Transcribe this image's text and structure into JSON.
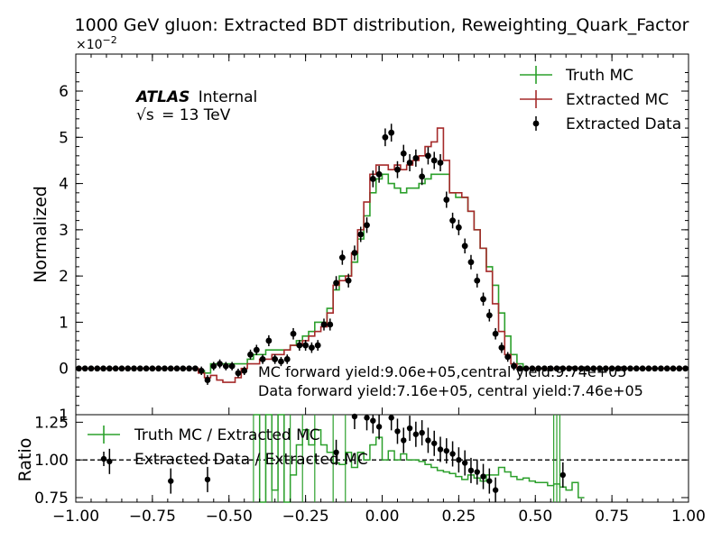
{
  "chart_data": [
    {
      "type": "line",
      "title": "1000 GeV gluon: Extracted BDT distribution, Reweighting_Quark_Factor",
      "xlabel": "",
      "ylabel": "Normalized",
      "y_multiplier_label": "×10",
      "y_multiplier_exp": "−2",
      "xlim": [
        -1.0,
        1.0
      ],
      "ylim": [
        -1.0,
        6.8
      ],
      "y_ticks": [
        0,
        1,
        2,
        3,
        4,
        5,
        6
      ],
      "y_tick_labels": [
        "0",
        "1",
        "2",
        "3",
        "4",
        "5",
        "6"
      ],
      "y_tick_label_minus1": "1",
      "legend_position": "top-right",
      "atlas_label": "ATLAS",
      "atlas_sublabel": "Internal",
      "energy_sqrt": "√s",
      "energy_value": "= 13 TeV",
      "yield_text_mc": "MC forward yield:9.06e+05,central yield:9.74e+05",
      "yield_text_data": "Data forward yield:7.16e+05, central yield:7.46e+05",
      "bin_edges_start": -1.0,
      "bin_width": 0.02,
      "series": [
        {
          "name": "Truth MC",
          "kind": "step",
          "color": "#2ca02c",
          "values": [
            0,
            0,
            0,
            0,
            0,
            0,
            0,
            0,
            0,
            0,
            0,
            0,
            0,
            0,
            0,
            0,
            0,
            0,
            0,
            0,
            -0.05,
            -0.1,
            0.1,
            0.1,
            0.1,
            0.1,
            0.1,
            0.1,
            0.2,
            0.3,
            0.3,
            0.4,
            0.4,
            0.4,
            0.4,
            0.5,
            0.6,
            0.7,
            0.8,
            1.0,
            1.0,
            1.3,
            1.7,
            2.0,
            2.0,
            2.3,
            2.8,
            3.3,
            3.8,
            4.1,
            4.2,
            4.0,
            3.9,
            3.8,
            3.9,
            3.9,
            4.0,
            4.1,
            4.2,
            4.2,
            4.2,
            3.8,
            3.7,
            3.7,
            3.4,
            3.0,
            2.6,
            2.2,
            1.8,
            1.2,
            0.7,
            0.3,
            0.1,
            0,
            0,
            0,
            0,
            0,
            0,
            0,
            0,
            0,
            0,
            0,
            0,
            0,
            0,
            0,
            0,
            0,
            0,
            0,
            0,
            0,
            0,
            0,
            0,
            0,
            0,
            0
          ]
        },
        {
          "name": "Extracted MC",
          "kind": "step",
          "color": "#a52a2a",
          "values": [
            0,
            0,
            0,
            0,
            0,
            0,
            0,
            0,
            0,
            0,
            0,
            0,
            0,
            0,
            0,
            0,
            0,
            0,
            0,
            0,
            -0.1,
            -0.2,
            -0.15,
            -0.25,
            -0.3,
            -0.3,
            -0.2,
            0,
            0.1,
            0.1,
            0.2,
            0.2,
            0.3,
            0.3,
            0.4,
            0.5,
            0.5,
            0.6,
            0.7,
            0.8,
            0.9,
            1.2,
            1.8,
            1.9,
            2.0,
            2.5,
            3.0,
            3.6,
            4.2,
            4.4,
            4.4,
            4.3,
            4.4,
            4.3,
            4.4,
            4.5,
            4.6,
            4.8,
            4.9,
            5.2,
            4.5,
            3.8,
            3.8,
            3.7,
            3.4,
            3.0,
            2.6,
            2.1,
            1.4,
            0.8,
            0.3,
            0.1,
            0,
            0,
            0,
            0,
            0,
            0,
            0,
            0,
            0,
            0,
            0,
            0,
            0,
            0,
            0,
            0,
            0,
            0,
            0,
            0,
            0,
            0,
            0,
            0,
            0,
            0,
            0,
            0
          ]
        },
        {
          "name": "Extracted Data",
          "kind": "points",
          "color": "#000000",
          "values": [
            0,
            0,
            0,
            0,
            0,
            0,
            0,
            0,
            0,
            0,
            0,
            0,
            0,
            0,
            0,
            0,
            0,
            0,
            0,
            0,
            -0.05,
            -0.25,
            0.05,
            0.1,
            0.05,
            0.05,
            -0.1,
            -0.05,
            0.3,
            0.4,
            0.2,
            0.6,
            0.2,
            0.15,
            0.2,
            0.75,
            0.5,
            0.5,
            0.45,
            0.5,
            0.95,
            0.95,
            1.85,
            2.4,
            1.9,
            2.5,
            2.9,
            3.1,
            4.1,
            4.2,
            5.0,
            5.1,
            4.3,
            4.65,
            4.45,
            4.55,
            4.15,
            4.6,
            4.5,
            4.45,
            3.65,
            3.2,
            3.05,
            2.65,
            2.3,
            1.9,
            1.5,
            1.15,
            0.75,
            0.45,
            0.25,
            0.05,
            0,
            0,
            0,
            0,
            0,
            0,
            0,
            0,
            0,
            0,
            0,
            0,
            0,
            0,
            0,
            0,
            0,
            0,
            0,
            0,
            0,
            0,
            0,
            0,
            0,
            0,
            0,
            0
          ]
        }
      ]
    },
    {
      "type": "line",
      "title": "",
      "xlabel": "",
      "ylabel": "Ratio",
      "xlim": [
        -1.0,
        1.0
      ],
      "ylim": [
        0.72,
        1.3
      ],
      "y_ticks": [
        0.75,
        1.0,
        1.25
      ],
      "y_tick_labels": [
        "0.75",
        "1.00",
        "1.25"
      ],
      "x_ticks": [
        -1.0,
        -0.75,
        -0.5,
        -0.25,
        0.0,
        0.25,
        0.5,
        0.75,
        1.0
      ],
      "x_tick_labels": [
        "−1.00",
        "−0.75",
        "−0.50",
        "−0.25",
        "0.00",
        "0.25",
        "0.50",
        "0.75",
        "1.00"
      ],
      "reference_line": 1.0,
      "legend_position": "top-left",
      "series": [
        {
          "name": "Truth MC / Extracted MC",
          "kind": "step",
          "color": "#2ca02c",
          "x_start": -0.42,
          "bin_width": 0.02,
          "values": [
            1.3,
            0.7,
            1.5,
            0.8,
            1.3,
            0.7,
            0.9,
            1.1,
            1.2,
            1.1,
            1.2,
            1.1,
            1.05,
            0.98,
            0.97,
            1.05,
            0.95,
            1.05,
            1.0,
            1.1,
            1.15,
            1.0,
            1.06,
            1.0,
            1.04,
            1.0,
            1.0,
            0.99,
            0.97,
            0.95,
            0.93,
            0.92,
            0.91,
            0.89,
            0.87,
            0.9,
            0.88,
            0.86,
            0.9,
            0.9,
            0.95,
            0.92,
            0.89,
            0.87,
            0.88,
            0.86,
            0.85,
            0.85,
            0.83,
            0.84,
            0.82,
            0.8,
            0.85,
            0.75
          ]
        },
        {
          "name": "Extracted Data / Extracted MC",
          "kind": "points",
          "color": "#000000",
          "x": [
            -0.89,
            -0.69,
            -0.57,
            -0.15,
            -0.09,
            -0.05,
            -0.03,
            -0.01,
            0.03,
            0.05,
            0.07,
            0.09,
            0.11,
            0.13,
            0.15,
            0.17,
            0.19,
            0.21,
            0.23,
            0.25,
            0.27,
            0.29,
            0.31,
            0.33,
            0.35,
            0.37,
            0.59
          ],
          "values": [
            0.99,
            0.86,
            0.87,
            1.05,
            1.3,
            1.28,
            1.26,
            1.22,
            1.28,
            1.19,
            1.13,
            1.21,
            1.17,
            1.18,
            1.13,
            1.11,
            1.07,
            1.06,
            1.04,
            1.0,
            0.98,
            0.93,
            0.92,
            0.89,
            0.86,
            0.8,
            0.9
          ]
        }
      ]
    }
  ]
}
